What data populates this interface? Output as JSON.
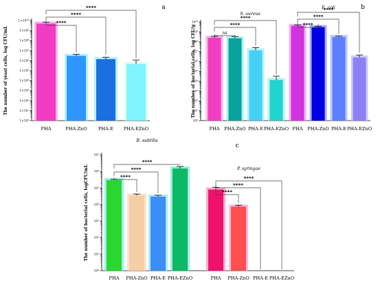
{
  "chart_data": [
    {
      "id": "a",
      "type": "bar",
      "panel_label": "a",
      "ylabel": "The number of yeast cells, log CFU/mL",
      "yscale": "log",
      "ylim": [
        1,
        10000000000.0
      ],
      "ytick_labels": [
        "1×10⁰",
        "1×10¹",
        "1×10²",
        "1×10³",
        "1×10⁴",
        "1×10⁵",
        "1×10⁶",
        "1×10⁷",
        "1×10⁸",
        "1×10⁹",
        "1×10¹⁰"
      ],
      "categories": [
        "PHA",
        "PHA-ZnO",
        "PHA-E",
        "PHA-EZnO"
      ],
      "values": [
        5000000000.0,
        3000000.0,
        1400000.0,
        450000.0
      ],
      "error_hi": [
        7000000000.0,
        4200000.0,
        2200000.0,
        1100000.0
      ],
      "colors": [
        "#f23cc4",
        "#2e97ff",
        "#1b6fe0",
        "#7ff3ff"
      ],
      "halo": [
        "#f7a8e6",
        "#a8f0ff",
        "#a8f0ff",
        "#d8fbff"
      ],
      "significance": [
        {
          "from": 0,
          "to": 1,
          "label": "****"
        },
        {
          "from": 0,
          "to": 2,
          "label": "****"
        },
        {
          "from": 0,
          "to": 3,
          "label": "****"
        }
      ]
    },
    {
      "id": "b",
      "type": "bar",
      "panel_label": "b",
      "ylabel": "The number of bacterial cells, log CFU/g",
      "yscale": "log",
      "ylim": [
        1,
        10000000000.0
      ],
      "ytick_labels": [
        "10⁰",
        "10¹",
        "10²",
        "10³",
        "10⁴",
        "10⁵",
        "10⁶",
        "10⁷",
        "10⁸",
        "10⁹",
        "10¹⁰"
      ],
      "categories": [
        "PHA",
        "PHA-ZnO",
        "PHA-E",
        "PHA-EZnO",
        "PHA",
        "PHA-ZnO",
        "PHA-E",
        "PHA-EZnO"
      ],
      "groups": [
        {
          "name": "S. aureus",
          "indices": [
            0,
            1,
            2,
            3
          ]
        },
        {
          "name": "E. coli",
          "indices": [
            4,
            5,
            6,
            7
          ]
        }
      ],
      "values": [
        250000000.0,
        220000000.0,
        13000000.0,
        13000.0,
        4000000000.0,
        3000000000.0,
        300000000.0,
        2500000.0
      ],
      "error_hi": [
        350000000.0,
        330000000.0,
        25000000.0,
        32000.0,
        4800000000.0,
        3600000000.0,
        360000000.0,
        4500000.0
      ],
      "colors": [
        "#f23cc4",
        "#08a39d",
        "#45d1f5",
        "#22d4cf",
        "#d233e0",
        "#0000e6",
        "#5e7fff",
        "#8d80f7"
      ],
      "halo": [
        "#f7a8e6",
        "#9af2e8",
        "#a8f0ff",
        "#a6f5ee",
        "#eaa4ef",
        "#9f9ff5",
        "#aec0ff",
        "#cac4f7"
      ],
      "significance": [
        {
          "from": 0,
          "to": 1,
          "label": "ns"
        },
        {
          "from": 0,
          "to": 2,
          "label": "****"
        },
        {
          "from": 0,
          "to": 3,
          "label": "****"
        },
        {
          "from": 4,
          "to": 5,
          "label": "****"
        },
        {
          "from": 4,
          "to": 6,
          "label": "****"
        },
        {
          "from": 4,
          "to": 7,
          "label": "****"
        }
      ]
    },
    {
      "id": "c",
      "type": "bar",
      "panel_label": "c",
      "ylabel": "The number of bacterial cells, logCFU/mL",
      "yscale": "log",
      "ylim": [
        1,
        10000000.0
      ],
      "ytick_labels": [
        "10⁰",
        "10¹",
        "10²",
        "10³",
        "10⁴",
        "10⁵",
        "10⁶",
        "10⁷"
      ],
      "categories": [
        "PHA",
        "PHA-ZnO",
        "PHA-E",
        "PHA-EZnO",
        "PHA",
        "PHA-ZnO",
        "PHA-E",
        "PHA-EZnO"
      ],
      "groups": [
        {
          "name": "B. subtilis",
          "indices": [
            0,
            1,
            2,
            3
          ]
        },
        {
          "name": "P. syringae",
          "indices": [
            4,
            5,
            6,
            7
          ]
        }
      ],
      "values": [
        300000.0,
        35000.0,
        30000.0,
        1500000.0,
        80000.0,
        7500.0,
        0,
        0
      ],
      "error_hi": [
        330000.0,
        43000.0,
        36000.0,
        2000000.0,
        110000.0,
        9000.0,
        0,
        0
      ],
      "colors": [
        "#2bd633",
        "#f7cfa6",
        "#3b8ff7",
        "#0db866",
        "#f0116e",
        "#ff4f4f",
        "#888888",
        "#888888"
      ],
      "halo": [
        "#86f1e8",
        "#f8e0c6",
        "#9ee6ff",
        "#86ecd5",
        "#ff9ec8",
        "#ffb0d6",
        "#ffffff",
        "#ffffff"
      ],
      "significance": [
        {
          "from": 0,
          "to": 1,
          "label": "****"
        },
        {
          "from": 0,
          "to": 2,
          "label": "****"
        },
        {
          "from": 0,
          "to": 3,
          "label": "****"
        },
        {
          "from": 4,
          "to": 5,
          "label": "****"
        },
        {
          "from": 4,
          "to": 6,
          "label": "****"
        },
        {
          "from": 4,
          "to": 7,
          "label": "****"
        }
      ]
    }
  ]
}
